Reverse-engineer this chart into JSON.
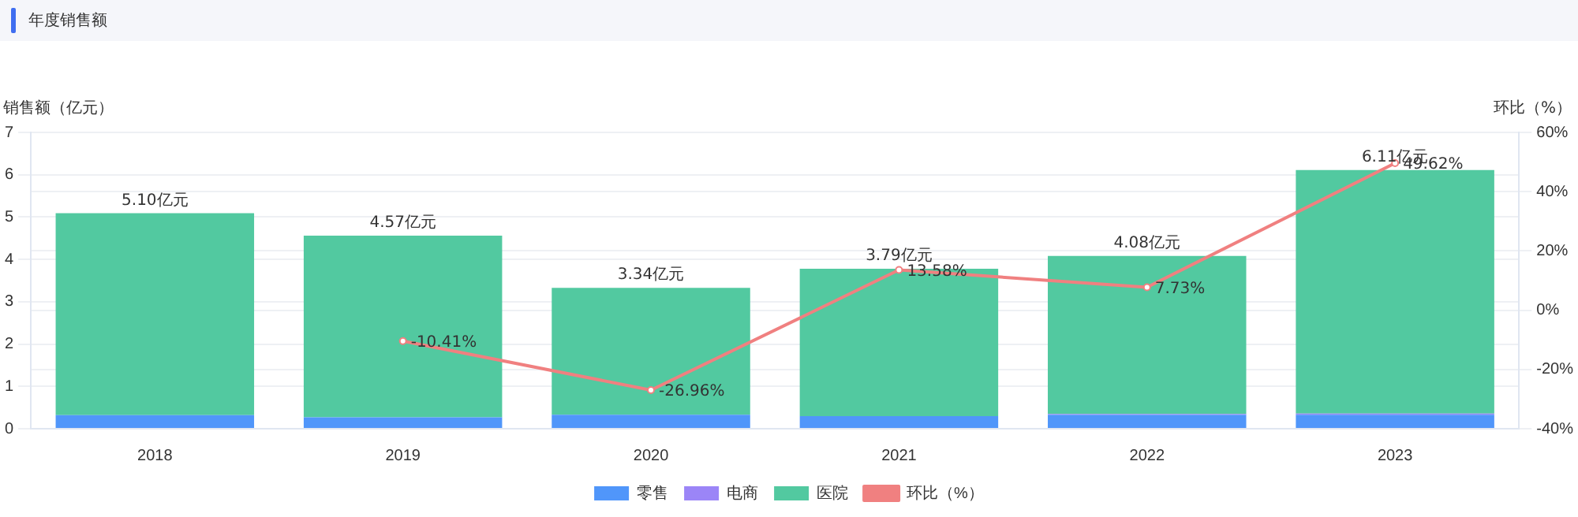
{
  "chart_data": {
    "type": "bar",
    "title": "年度销售额",
    "ylabel": "销售额（亿元）",
    "y2label": "环比（%）",
    "categories": [
      "2018",
      "2019",
      "2020",
      "2021",
      "2022",
      "2023"
    ],
    "stacked": true,
    "series": [
      {
        "name": "零售",
        "color": "#5096fa",
        "values": [
          0.32,
          0.27,
          0.33,
          0.3,
          0.33,
          0.33
        ]
      },
      {
        "name": "电商",
        "color": "#9b85f7",
        "values": [
          null,
          null,
          null,
          null,
          0.02,
          0.03
        ]
      },
      {
        "name": "医院",
        "color": "#52c9a0",
        "values": [
          4.77,
          4.29,
          3.0,
          3.48,
          3.73,
          5.75
        ]
      },
      {
        "name": "环比（%）",
        "type": "line",
        "axis": "y2",
        "color": "#f08080",
        "marker": "circle",
        "values": [
          null,
          -10.41,
          -26.96,
          13.58,
          7.73,
          49.62
        ],
        "value_labels": [
          null,
          "-10.41%",
          "-26.96%",
          "13.58%",
          "7.73%",
          "49.62%"
        ]
      }
    ],
    "totals": [
      "5.10亿元",
      "4.57亿元",
      "3.34亿元",
      "3.79亿元",
      "4.08亿元",
      "6.11亿元"
    ],
    "ylim": [
      0,
      7
    ],
    "yticks": [
      0,
      1,
      2,
      3,
      4,
      5,
      6,
      7
    ],
    "y2lim": [
      -40,
      60
    ],
    "y2ticks": [
      {
        "value": -40,
        "label": "-40%"
      },
      {
        "value": -20,
        "label": "-20%"
      },
      {
        "value": 0,
        "label": "0%"
      },
      {
        "value": 20,
        "label": "20%"
      },
      {
        "value": 40,
        "label": "40%"
      },
      {
        "value": 60,
        "label": "60%"
      }
    ],
    "grid": "y",
    "legend": "bottom"
  }
}
